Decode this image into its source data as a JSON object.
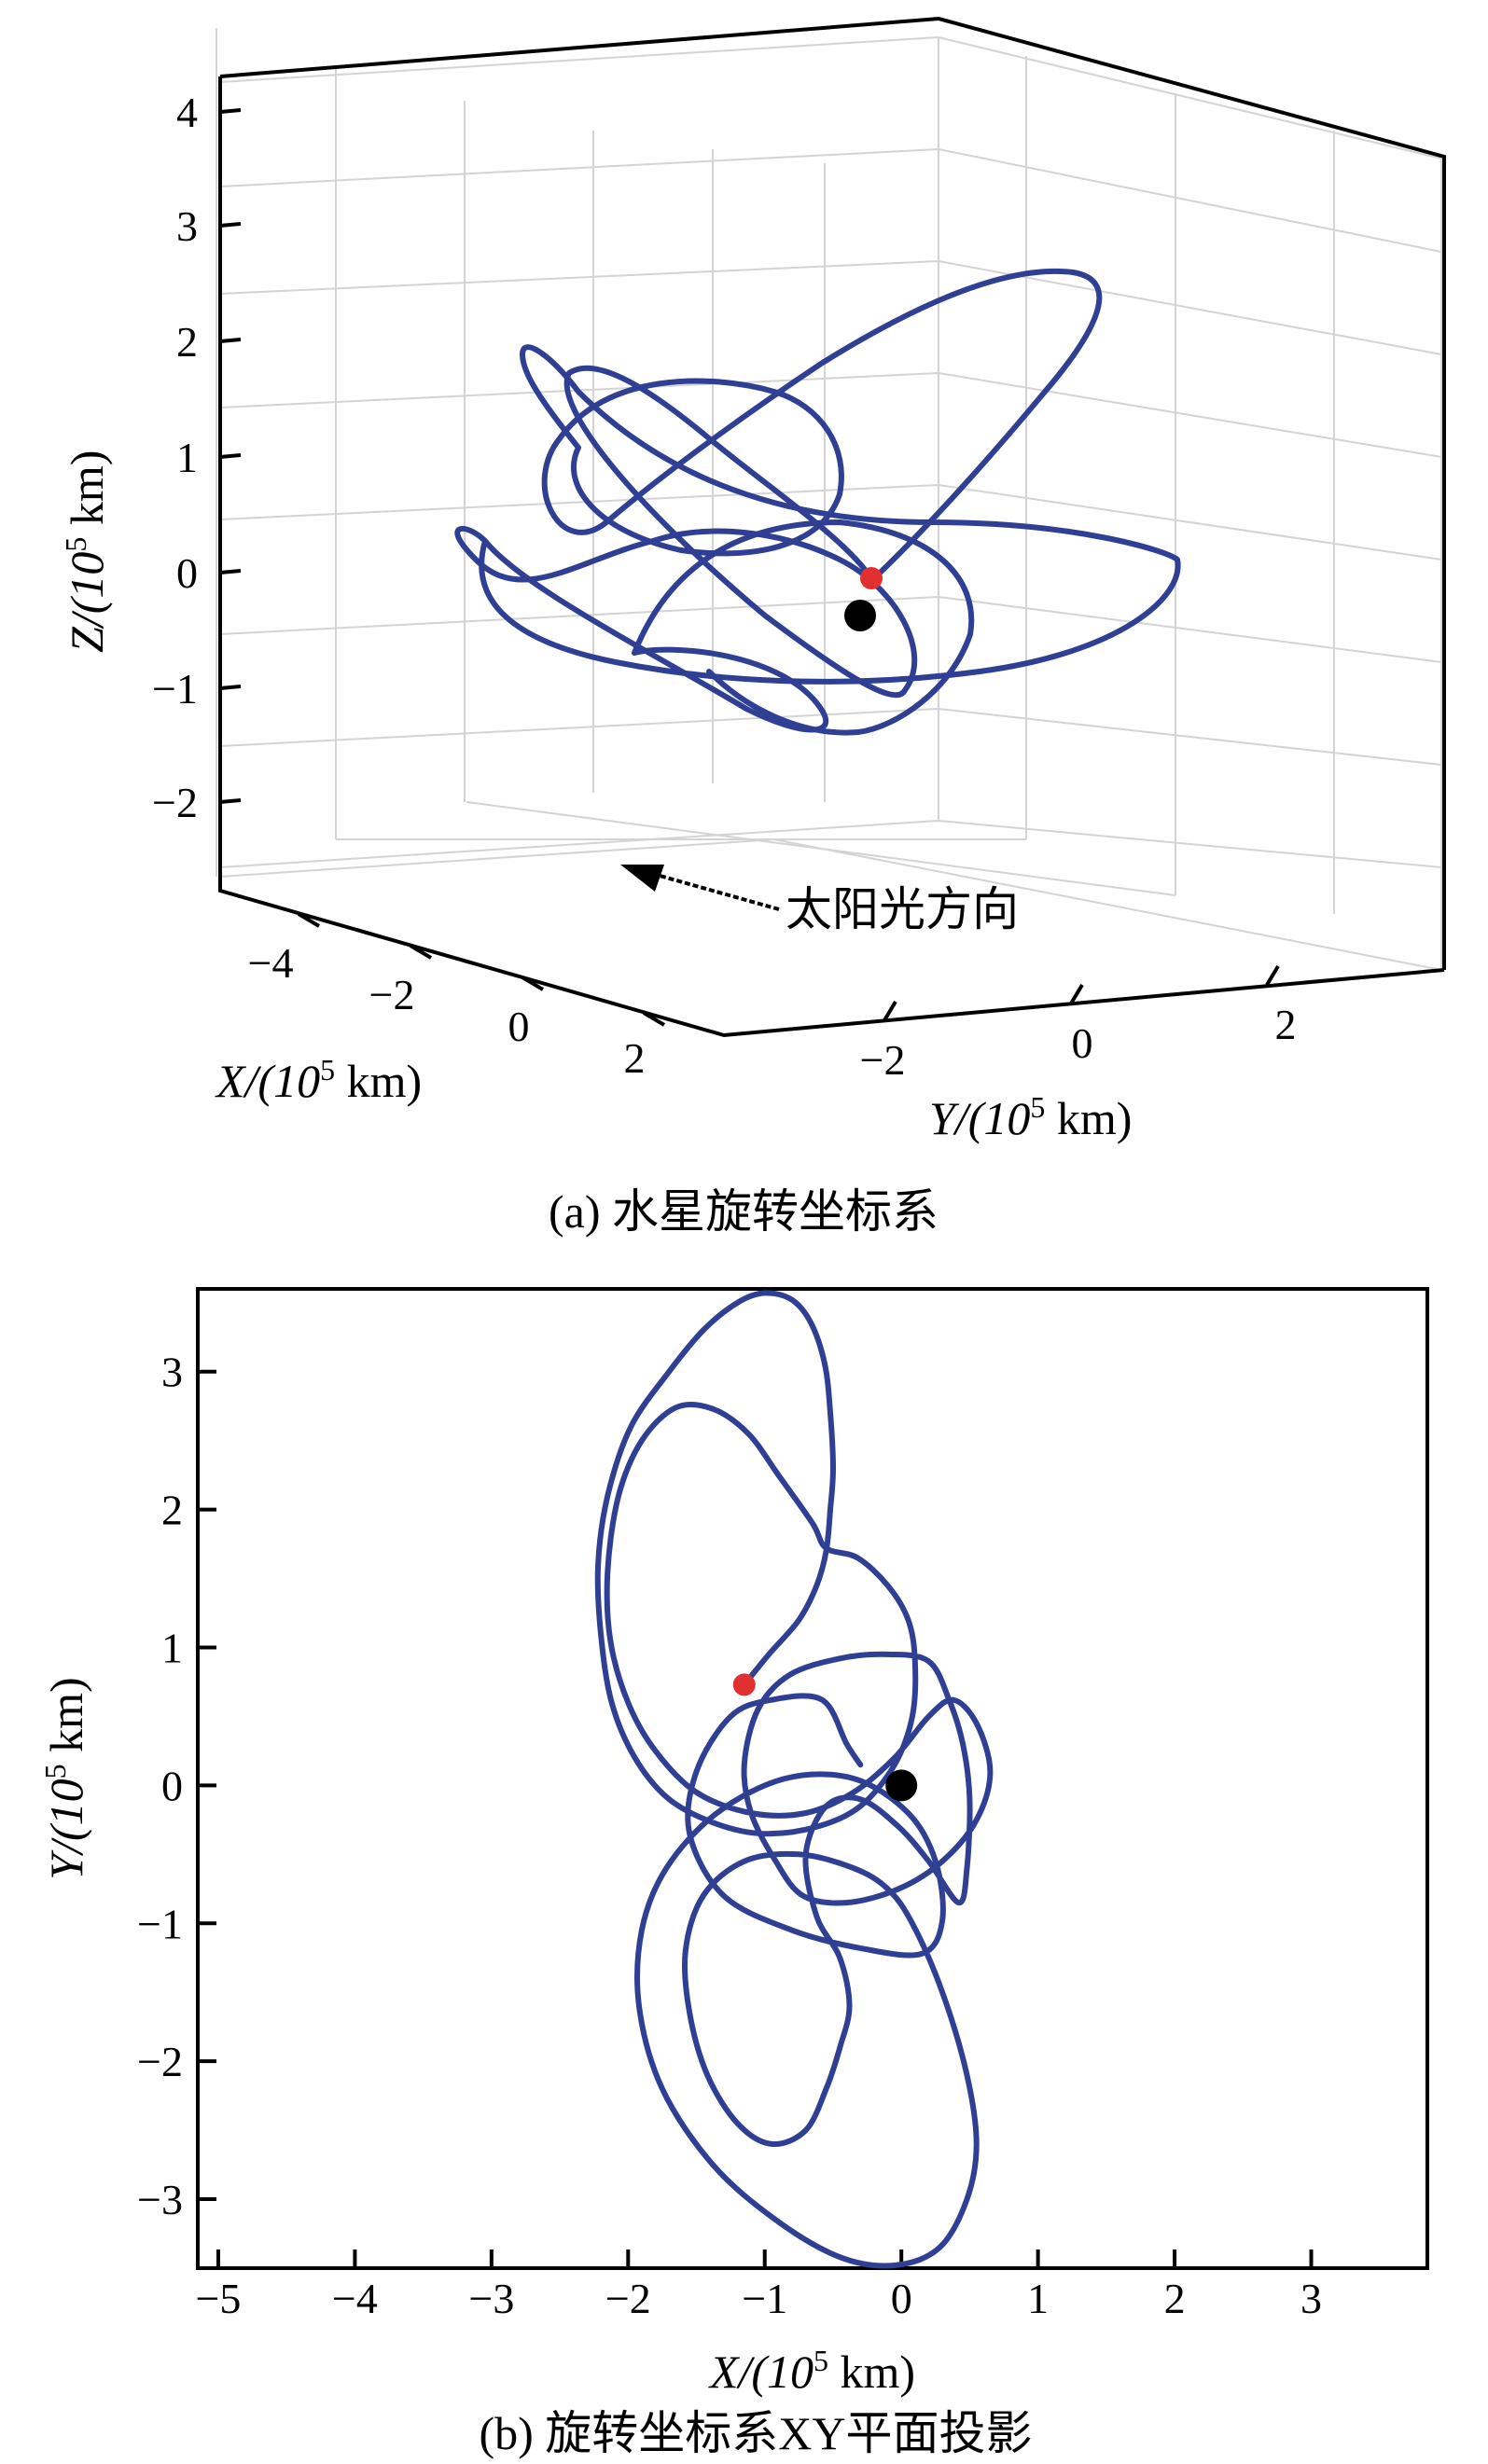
{
  "chart_data": [
    {
      "type": "line",
      "projection": "3d",
      "caption": "(a) 水星旋转坐标系",
      "xlabel": "X/(10",
      "xlabel_exp": "5",
      "xlabel_unit": " km)",
      "ylabel": "Y/(10",
      "ylabel_exp": "5",
      "ylabel_unit": " km)",
      "zlabel": "Z/(10",
      "zlabel_exp": "5",
      "zlabel_unit": " km)",
      "x_ticks": [
        "−4",
        "−2",
        "0",
        "2"
      ],
      "y_ticks": [
        "−2",
        "0",
        "2"
      ],
      "z_ticks": [
        "4",
        "3",
        "2",
        "1",
        "0",
        "−1",
        "−2"
      ],
      "annotation": "太阳光方向",
      "markers": [
        {
          "name": "black-marker",
          "color": "#000000"
        },
        {
          "name": "red-marker",
          "color": "#e03030"
        }
      ],
      "colors": {
        "orbit": "#2e3f94"
      }
    },
    {
      "type": "line",
      "caption": "(b) 旋转坐标系XY平面投影",
      "xlabel": "X/(10",
      "xlabel_exp": "5",
      "xlabel_unit": " km)",
      "ylabel": "Y/(10",
      "ylabel_exp": "5",
      "ylabel_unit": " km)",
      "xlim": [
        -5.15,
        3.85
      ],
      "ylim": [
        -3.5,
        3.6
      ],
      "x_ticks": [
        "−5",
        "−4",
        "−3",
        "−2",
        "−1",
        "0",
        "1",
        "2",
        "3"
      ],
      "y_ticks": [
        "3",
        "2",
        "1",
        "0",
        "−1",
        "−2",
        "−3"
      ],
      "x_tick_values": [
        -5,
        -4,
        -3,
        -2,
        -1,
        0,
        1,
        2,
        3
      ],
      "y_tick_values": [
        3,
        2,
        1,
        0,
        -1,
        -2,
        -3
      ],
      "black_marker": [
        0,
        0
      ],
      "red_marker": [
        -1.15,
        0.73
      ],
      "orbit": [
        [
          -1.15,
          0.73
        ],
        [
          -0.97,
          0.95
        ],
        [
          -0.75,
          1.2
        ],
        [
          -0.62,
          1.45
        ],
        [
          -0.55,
          1.7
        ],
        [
          -0.52,
          2.0
        ],
        [
          -0.5,
          2.3
        ],
        [
          -0.52,
          2.7
        ],
        [
          -0.56,
          3.05
        ],
        [
          -0.66,
          3.35
        ],
        [
          -0.8,
          3.52
        ],
        [
          -1.0,
          3.57
        ],
        [
          -1.2,
          3.5
        ],
        [
          -1.45,
          3.3
        ],
        [
          -1.7,
          3.0
        ],
        [
          -1.98,
          2.6
        ],
        [
          -2.15,
          2.1
        ],
        [
          -2.22,
          1.6
        ],
        [
          -2.2,
          1.1
        ],
        [
          -2.12,
          0.6
        ],
        [
          -1.95,
          0.2
        ],
        [
          -1.7,
          -0.1
        ],
        [
          -1.35,
          -0.28
        ],
        [
          -1.0,
          -0.35
        ],
        [
          -0.62,
          -0.3
        ],
        [
          -0.3,
          -0.15
        ],
        [
          -0.05,
          0.15
        ],
        [
          0.08,
          0.5
        ],
        [
          0.1,
          0.9
        ],
        [
          0.05,
          1.2
        ],
        [
          -0.1,
          1.45
        ],
        [
          -0.32,
          1.65
        ],
        [
          -0.55,
          1.72
        ],
        [
          -0.65,
          1.9
        ],
        [
          -0.9,
          2.25
        ],
        [
          -1.12,
          2.55
        ],
        [
          -1.38,
          2.73
        ],
        [
          -1.65,
          2.74
        ],
        [
          -1.9,
          2.5
        ],
        [
          -2.07,
          2.1
        ],
        [
          -2.15,
          1.55
        ],
        [
          -2.13,
          1.05
        ],
        [
          -2.0,
          0.6
        ],
        [
          -1.8,
          0.25
        ],
        [
          -1.5,
          -0.05
        ],
        [
          -1.1,
          -0.2
        ],
        [
          -0.7,
          -0.2
        ],
        [
          -0.35,
          -0.05
        ],
        [
          -0.05,
          0.2
        ],
        [
          0.2,
          0.5
        ],
        [
          0.38,
          0.62
        ],
        [
          0.55,
          0.45
        ],
        [
          0.65,
          0.1
        ],
        [
          0.55,
          -0.25
        ],
        [
          0.3,
          -0.55
        ],
        [
          -0.02,
          -0.75
        ],
        [
          -0.4,
          -0.85
        ],
        [
          -0.72,
          -0.8
        ],
        [
          -0.92,
          -0.55
        ],
        [
          -1.1,
          -0.2
        ],
        [
          -1.15,
          0.15
        ],
        [
          -1.05,
          0.55
        ],
        [
          -0.82,
          0.8
        ],
        [
          -0.45,
          0.92
        ],
        [
          -0.1,
          0.95
        ],
        [
          0.2,
          0.9
        ],
        [
          0.35,
          0.62
        ],
        [
          0.45,
          0.3
        ],
        [
          0.5,
          -0.1
        ],
        [
          0.48,
          -0.6
        ],
        [
          0.42,
          -0.85
        ],
        [
          0.2,
          -0.55
        ],
        [
          -0.02,
          -0.3
        ],
        [
          -0.3,
          -0.1
        ],
        [
          -0.55,
          -0.15
        ],
        [
          -0.7,
          -0.5
        ],
        [
          -0.62,
          -0.95
        ],
        [
          -0.45,
          -1.25
        ],
        [
          -0.38,
          -1.6
        ],
        [
          -0.45,
          -1.9
        ],
        [
          -0.55,
          -2.2
        ],
        [
          -0.7,
          -2.5
        ],
        [
          -0.95,
          -2.6
        ],
        [
          -1.2,
          -2.45
        ],
        [
          -1.42,
          -2.1
        ],
        [
          -1.55,
          -1.65
        ],
        [
          -1.58,
          -1.2
        ],
        [
          -1.45,
          -0.8
        ],
        [
          -1.15,
          -0.55
        ],
        [
          -0.75,
          -0.5
        ],
        [
          -0.35,
          -0.6
        ],
        [
          -0.1,
          -0.75
        ],
        [
          0.08,
          -1.0
        ],
        [
          0.3,
          -1.5
        ],
        [
          0.48,
          -2.1
        ],
        [
          0.55,
          -2.6
        ],
        [
          0.48,
          -3.0
        ],
        [
          0.28,
          -3.35
        ],
        [
          -0.05,
          -3.48
        ],
        [
          -0.45,
          -3.42
        ],
        [
          -0.92,
          -3.15
        ],
        [
          -1.38,
          -2.75
        ],
        [
          -1.75,
          -2.2
        ],
        [
          -1.92,
          -1.6
        ],
        [
          -1.9,
          -1.05
        ],
        [
          -1.72,
          -0.6
        ],
        [
          -1.35,
          -0.2
        ],
        [
          -0.85,
          0.05
        ],
        [
          -0.35,
          0.05
        ],
        [
          0.05,
          -0.2
        ],
        [
          0.25,
          -0.55
        ],
        [
          0.3,
          -0.98
        ],
        [
          0.15,
          -1.22
        ],
        [
          -0.3,
          -1.18
        ],
        [
          -0.8,
          -1.05
        ],
        [
          -1.3,
          -0.8
        ],
        [
          -1.55,
          -0.35
        ],
        [
          -1.5,
          0.1
        ],
        [
          -1.25,
          0.5
        ],
        [
          -0.95,
          0.62
        ],
        [
          -0.58,
          0.62
        ],
        [
          -0.4,
          0.3
        ],
        [
          -0.3,
          0.15
        ]
      ],
      "colors": {
        "orbit": "#2e3f94",
        "black_marker": "#000000",
        "red_marker": "#e03030"
      }
    }
  ]
}
